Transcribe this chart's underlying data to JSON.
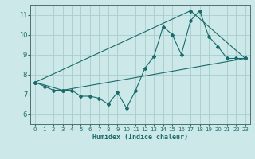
{
  "title": "",
  "xlabel": "Humidex (Indice chaleur)",
  "bg_color": "#cce8e8",
  "grid_color": "#aacccc",
  "line_color": "#1a6b6b",
  "xlim": [
    -0.5,
    23.5
  ],
  "ylim": [
    5.5,
    11.5
  ],
  "xticks": [
    0,
    1,
    2,
    3,
    4,
    5,
    6,
    7,
    8,
    9,
    10,
    11,
    12,
    13,
    14,
    15,
    16,
    17,
    18,
    19,
    20,
    21,
    22,
    23
  ],
  "yticks": [
    6,
    7,
    8,
    9,
    10,
    11
  ],
  "line1_x": [
    0,
    1,
    2,
    3,
    4,
    5,
    6,
    7,
    8,
    9,
    10,
    11,
    12,
    13,
    14,
    15,
    16,
    17,
    18,
    19,
    20,
    21,
    22,
    23
  ],
  "line1_y": [
    7.6,
    7.4,
    7.2,
    7.2,
    7.2,
    6.9,
    6.9,
    6.8,
    6.5,
    7.1,
    6.3,
    7.2,
    8.3,
    8.9,
    10.4,
    10.0,
    9.0,
    10.7,
    11.2,
    9.9,
    9.4,
    8.8,
    8.8,
    8.8
  ],
  "line2_x": [
    0,
    3,
    23
  ],
  "line2_y": [
    7.6,
    7.2,
    8.8
  ],
  "line3_x": [
    0,
    17,
    23
  ],
  "line3_y": [
    7.6,
    11.2,
    8.8
  ]
}
